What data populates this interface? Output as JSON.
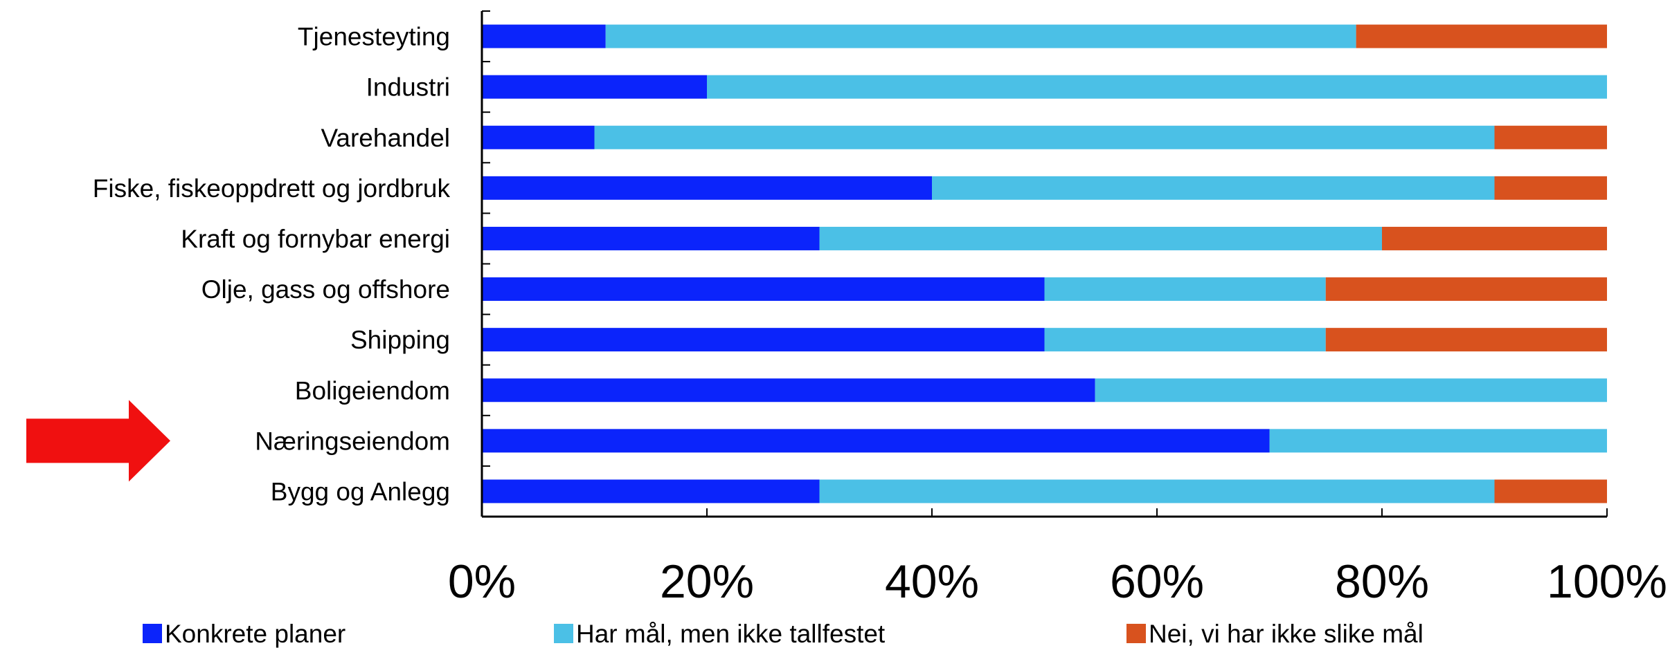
{
  "chart_data": {
    "type": "bar",
    "orientation": "horizontal",
    "stacked": true,
    "categories": [
      "Tjenesteyting",
      "Industri",
      "Varehandel",
      "Fiske, fiskeoppdrett og jordbruk",
      "Kraft og fornybar energi",
      "Olje, gass og offshore",
      "Shipping",
      "Boligeiendom",
      "Næringseiendom",
      "Bygg og Anlegg"
    ],
    "series": [
      {
        "name": "Konkrete planer",
        "color": "#0b24fb",
        "values": [
          11,
          20,
          10,
          40,
          30,
          50,
          50,
          54.5,
          70,
          30
        ]
      },
      {
        "name": "Har mål, men ikke tallfestet",
        "color": "#4bc0e6",
        "values": [
          66.7,
          80,
          80,
          50,
          50,
          25,
          25,
          45.5,
          30,
          60
        ]
      },
      {
        "name": "Nei, vi har ikke slike mål",
        "color": "#d8521e",
        "values": [
          22.3,
          0,
          10,
          10,
          20,
          25,
          25,
          0,
          0,
          10
        ]
      }
    ],
    "xlim": [
      0,
      100
    ],
    "x_ticks": [
      "0%",
      "20%",
      "40%",
      "60%",
      "80%",
      "100%"
    ],
    "grid": false,
    "legend_position": "bottom",
    "highlight": {
      "category": "Næringseiendom",
      "marker": "arrow",
      "color": "#f01010"
    }
  }
}
